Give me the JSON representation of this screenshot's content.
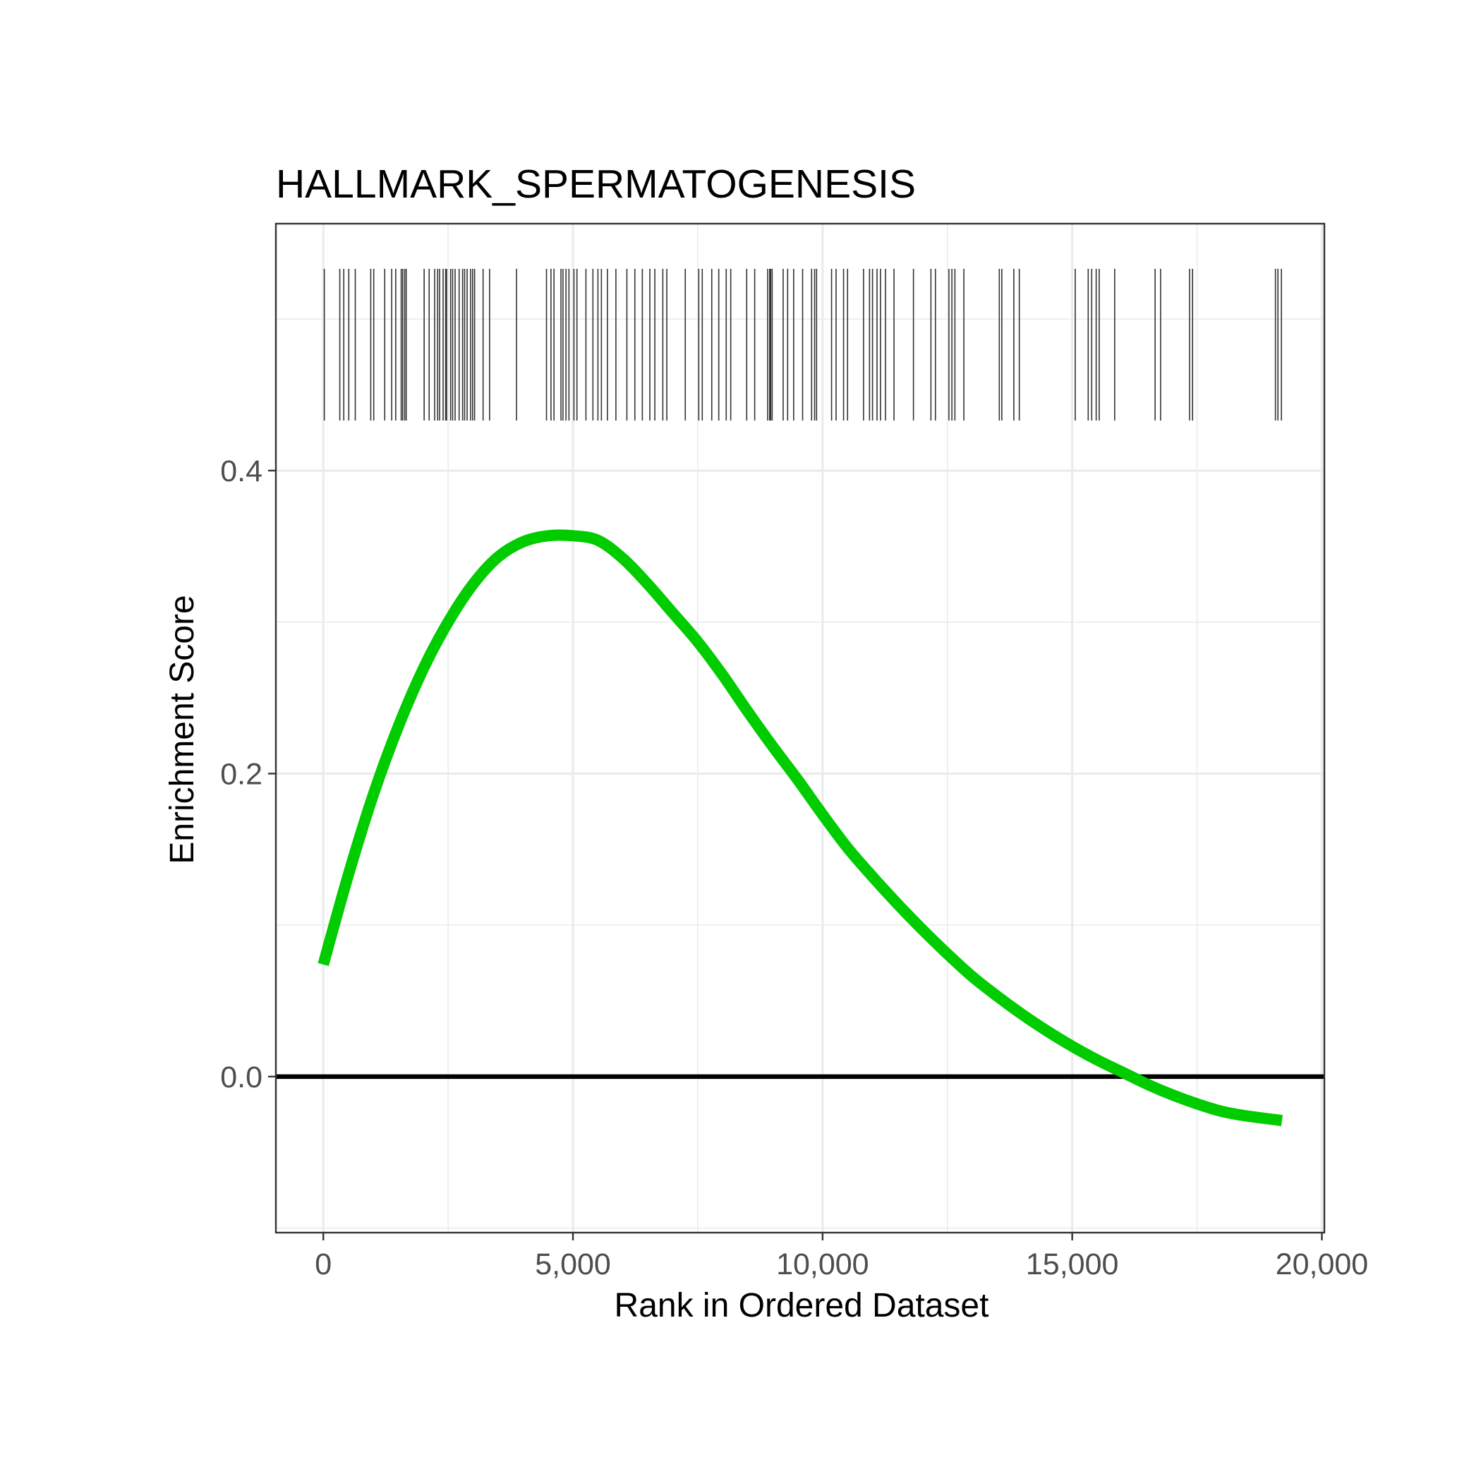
{
  "chart_data": {
    "type": "line",
    "title": "HALLMARK_SPERMATOGENESIS",
    "xlabel": "Rank in Ordered Dataset",
    "ylabel": "Enrichment Score",
    "xlim": [
      -950,
      20050
    ],
    "ylim": [
      -0.103,
      0.563
    ],
    "x_ticks": [
      0,
      5000,
      10000,
      15000,
      20000
    ],
    "x_tick_labels": [
      "0",
      "5,000",
      "10,000",
      "15,000",
      "20,000"
    ],
    "y_ticks": [
      0.0,
      0.2,
      0.4
    ],
    "y_tick_labels": [
      "0.0",
      "0.2",
      "0.4"
    ],
    "y_minor_ticks": [
      -0.1,
      0.1,
      0.3,
      0.5
    ],
    "x_minor_ticks": [
      -2500,
      2500,
      7500,
      12500,
      17500
    ],
    "grid": true,
    "zero_line": 0,
    "line_color": "#00cc00",
    "series": [
      {
        "x": [
          0,
          500,
          1000,
          1500,
          2000,
          2500,
          3000,
          3500,
          4000,
          4500,
          5000,
          5500,
          6000,
          6500,
          7000,
          7500,
          8000,
          8500,
          9000,
          9500,
          10000,
          10500,
          11000,
          11500,
          12000,
          12500,
          13000,
          13500,
          14000,
          14500,
          15000,
          15500,
          16000,
          16500,
          17000,
          17500,
          18000,
          18500,
          19200
        ],
        "y": [
          0.074,
          0.133,
          0.186,
          0.231,
          0.269,
          0.3,
          0.325,
          0.343,
          0.353,
          0.357,
          0.357,
          0.354,
          0.342,
          0.325,
          0.306,
          0.287,
          0.265,
          0.241,
          0.218,
          0.196,
          0.173,
          0.151,
          0.132,
          0.114,
          0.097,
          0.081,
          0.066,
          0.053,
          0.041,
          0.03,
          0.02,
          0.011,
          0.003,
          -0.005,
          -0.012,
          -0.018,
          -0.023,
          -0.026,
          -0.029
        ]
      }
    ],
    "rug_positions": [
      20,
      330,
      410,
      510,
      640,
      950,
      1010,
      1230,
      1370,
      1450,
      1560,
      1590,
      1630,
      1660,
      2020,
      2120,
      2230,
      2290,
      2330,
      2400,
      2450,
      2470,
      2550,
      2590,
      2640,
      2720,
      2790,
      2830,
      2880,
      2950,
      2990,
      3030,
      3200,
      3330,
      3870,
      4470,
      4560,
      4620,
      4760,
      4800,
      4860,
      4920,
      5020,
      5080,
      5260,
      5400,
      5500,
      5570,
      5690,
      5860,
      6080,
      6240,
      6390,
      6540,
      6640,
      6800,
      6880,
      7250,
      7520,
      7590,
      7780,
      7920,
      8070,
      8160,
      8480,
      8640,
      8900,
      8940,
      8960,
      8990,
      9210,
      9300,
      9420,
      9600,
      9780,
      9840,
      9880,
      10180,
      10270,
      10420,
      10500,
      10820,
      10940,
      11000,
      11090,
      11160,
      11260,
      11430,
      11820,
      12170,
      12260,
      12530,
      12590,
      12650,
      12830,
      13540,
      13590,
      13830,
      13940,
      15060,
      15320,
      15390,
      15480,
      15540,
      15850,
      16660,
      16770,
      17350,
      17410,
      19070,
      19120,
      19190
    ]
  }
}
